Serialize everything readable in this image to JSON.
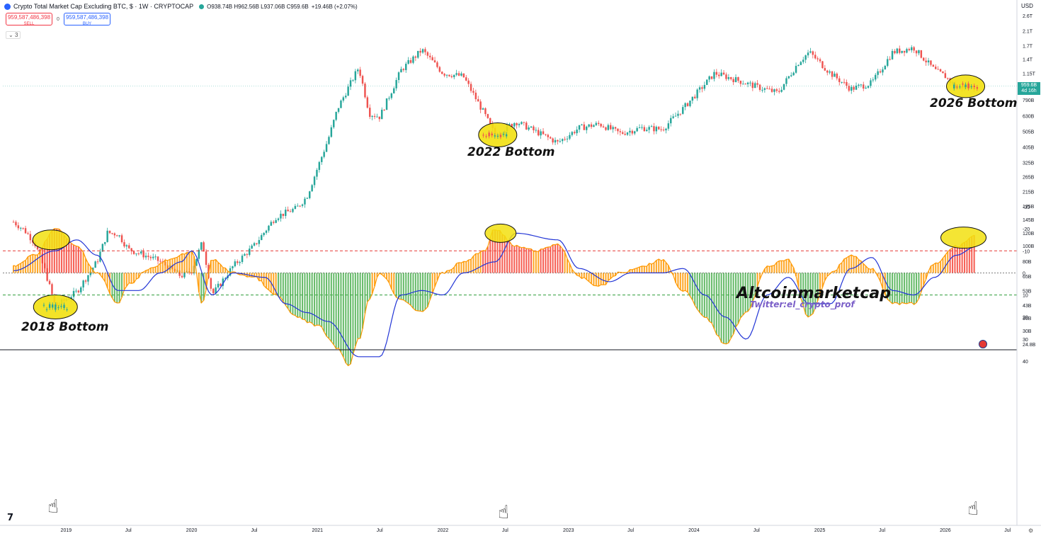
{
  "header": {
    "title": "Crypto Total Market Cap Excluding BTC, $ · 1W · CRYPTOCAP",
    "ohlc": "O938.74B H962.56B L937.06B C959.6B",
    "change": "+19.46B (+2.07%)",
    "sell_value": "959,587,486,398",
    "sell_label": "SELL",
    "buy_value": "959,587,486,398",
    "buy_label": "BUY",
    "spread": "0",
    "indicator_count": "3",
    "currency": "USD"
  },
  "price_tag": {
    "value": "959.6B",
    "countdown": "4d 16h"
  },
  "annotations": {
    "bottom_2018": "2018 Bottom",
    "bottom_2022": "2022 Bottom",
    "bottom_2026": "2026 Bottom",
    "brand": "Altcoinmarketcap",
    "handle": "Twitter:el_crypto_prof"
  },
  "colors": {
    "up": "#26a69a",
    "down": "#ef5350",
    "highlight": "#f2e011",
    "osc_green": "#4caf50",
    "osc_orange": "#ff9800",
    "osc_red": "#f44336",
    "signal": "#2235d6",
    "band_top": "#2e9d3a",
    "band_bottom": "#e53935"
  },
  "icons": [
    "tradingview-logo-icon",
    "us-flag-icon",
    "pointing-hand-icon"
  ],
  "chart_data": [
    {
      "type": "candlestick",
      "scale": "log",
      "timeframe": "1W",
      "y_ticks": [
        "2.6T",
        "2.1T",
        "1.7T",
        "1.4T",
        "1.15T",
        "959.6B",
        "790B",
        "630B",
        "505B",
        "405B",
        "325B",
        "265B",
        "215B",
        "175B",
        "145B",
        "120B",
        "100B",
        "80B",
        "65B",
        "53B",
        "43B",
        "36B",
        "30B",
        "24.8B"
      ],
      "x_ticks": [
        "2019",
        "Jul",
        "2020",
        "Jul",
        "2021",
        "Jul",
        "2022",
        "Jul",
        "2023",
        "Jul",
        "2024",
        "Jul",
        "2025",
        "Jul",
        "2026",
        "Jul"
      ],
      "anchors": [
        {
          "date": "2018-08",
          "close": 140
        },
        {
          "date": "2018-09",
          "close": 125
        },
        {
          "date": "2018-10",
          "close": 105
        },
        {
          "date": "2018-11",
          "close": 70
        },
        {
          "date": "2018-12",
          "close": 42
        },
        {
          "date": "2019-01",
          "close": 47
        },
        {
          "date": "2019-02",
          "close": 52
        },
        {
          "date": "2019-04",
          "close": 80
        },
        {
          "date": "2019-05",
          "close": 120
        },
        {
          "date": "2019-06",
          "close": 118
        },
        {
          "date": "2019-07",
          "close": 95
        },
        {
          "date": "2019-09",
          "close": 85
        },
        {
          "date": "2019-10",
          "close": 80
        },
        {
          "date": "2019-12",
          "close": 65
        },
        {
          "date": "2020-01",
          "close": 70
        },
        {
          "date": "2020-02",
          "close": 105
        },
        {
          "date": "2020-03",
          "close": 50
        },
        {
          "date": "2020-05",
          "close": 75
        },
        {
          "date": "2020-07",
          "close": 100
        },
        {
          "date": "2020-09",
          "close": 150
        },
        {
          "date": "2020-11",
          "close": 170
        },
        {
          "date": "2020-12",
          "close": 200
        },
        {
          "date": "2021-01",
          "close": 300
        },
        {
          "date": "2021-02",
          "close": 450
        },
        {
          "date": "2021-03",
          "close": 700
        },
        {
          "date": "2021-05",
          "close": 1250
        },
        {
          "date": "2021-06",
          "close": 650
        },
        {
          "date": "2021-07",
          "close": 620
        },
        {
          "date": "2021-09",
          "close": 1200
        },
        {
          "date": "2021-11",
          "close": 1600
        },
        {
          "date": "2022-01",
          "close": 1150
        },
        {
          "date": "2022-03",
          "close": 1100
        },
        {
          "date": "2022-05",
          "close": 650
        },
        {
          "date": "2022-06",
          "close": 480
        },
        {
          "date": "2022-08",
          "close": 580
        },
        {
          "date": "2022-10",
          "close": 500
        },
        {
          "date": "2022-12",
          "close": 430
        },
        {
          "date": "2023-02",
          "close": 530
        },
        {
          "date": "2023-04",
          "close": 560
        },
        {
          "date": "2023-06",
          "close": 490
        },
        {
          "date": "2023-08",
          "close": 530
        },
        {
          "date": "2023-10",
          "close": 520
        },
        {
          "date": "2023-12",
          "close": 700
        },
        {
          "date": "2024-03",
          "close": 1150
        },
        {
          "date": "2024-05",
          "close": 1050
        },
        {
          "date": "2024-07",
          "close": 950
        },
        {
          "date": "2024-09",
          "close": 870
        },
        {
          "date": "2024-11",
          "close": 1350
        },
        {
          "date": "2024-12",
          "close": 1550
        },
        {
          "date": "2025-02",
          "close": 1150
        },
        {
          "date": "2025-04",
          "close": 920
        },
        {
          "date": "2025-06",
          "close": 1000
        },
        {
          "date": "2025-08",
          "close": 1550
        },
        {
          "date": "2025-10",
          "close": 1650
        },
        {
          "date": "2025-12",
          "close": 1200
        },
        {
          "date": "2026-01",
          "close": 1100
        },
        {
          "date": "2026-02",
          "close": 940
        },
        {
          "date": "2026-04",
          "close": 959.6
        }
      ],
      "highlighted_bottoms": [
        "2018 Bottom",
        "2022 Bottom",
        "2026 Bottom"
      ]
    },
    {
      "type": "histogram",
      "name": "oscillator",
      "y_ticks": [
        "40",
        "30",
        "20",
        "10",
        "0",
        "-10",
        "-20",
        "-30"
      ],
      "ylim": [
        -30,
        40
      ],
      "levels": [
        10,
        0,
        -10
      ],
      "series": [
        {
          "name": "histogram",
          "points": [
            {
              "date": "2018-08",
              "y": -3
            },
            {
              "date": "2018-10",
              "y": -8
            },
            {
              "date": "2018-12",
              "y": -20
            },
            {
              "date": "2019-02",
              "y": -12
            },
            {
              "date": "2019-04",
              "y": 0
            },
            {
              "date": "2019-06",
              "y": 14
            },
            {
              "date": "2019-07",
              "y": 5
            },
            {
              "date": "2019-09",
              "y": -2
            },
            {
              "date": "2019-11",
              "y": -6
            },
            {
              "date": "2020-01",
              "y": -10
            },
            {
              "date": "2020-02",
              "y": 14
            },
            {
              "date": "2020-03",
              "y": -6
            },
            {
              "date": "2020-05",
              "y": 0
            },
            {
              "date": "2020-07",
              "y": 2
            },
            {
              "date": "2020-09",
              "y": 10
            },
            {
              "date": "2020-11",
              "y": 20
            },
            {
              "date": "2021-01",
              "y": 24
            },
            {
              "date": "2021-03",
              "y": 34
            },
            {
              "date": "2021-04",
              "y": 42
            },
            {
              "date": "2021-05",
              "y": 30
            },
            {
              "date": "2021-06",
              "y": 12
            },
            {
              "date": "2021-07",
              "y": 0
            },
            {
              "date": "2021-09",
              "y": 12
            },
            {
              "date": "2021-11",
              "y": 18
            },
            {
              "date": "2022-01",
              "y": 0
            },
            {
              "date": "2022-03",
              "y": -5
            },
            {
              "date": "2022-05",
              "y": -10
            },
            {
              "date": "2022-06",
              "y": -20
            },
            {
              "date": "2022-08",
              "y": -12
            },
            {
              "date": "2022-10",
              "y": -10
            },
            {
              "date": "2022-12",
              "y": -13
            },
            {
              "date": "2023-02",
              "y": 2
            },
            {
              "date": "2023-04",
              "y": 6
            },
            {
              "date": "2023-06",
              "y": 0
            },
            {
              "date": "2023-08",
              "y": -3
            },
            {
              "date": "2023-10",
              "y": -6
            },
            {
              "date": "2023-12",
              "y": 8
            },
            {
              "date": "2024-02",
              "y": 20
            },
            {
              "date": "2024-04",
              "y": 32
            },
            {
              "date": "2024-06",
              "y": 18
            },
            {
              "date": "2024-08",
              "y": -3
            },
            {
              "date": "2024-10",
              "y": -6
            },
            {
              "date": "2024-12",
              "y": 20
            },
            {
              "date": "2025-02",
              "y": 0
            },
            {
              "date": "2025-04",
              "y": -8
            },
            {
              "date": "2025-06",
              "y": -2
            },
            {
              "date": "2025-08",
              "y": 14
            },
            {
              "date": "2025-10",
              "y": 14
            },
            {
              "date": "2025-12",
              "y": -4
            },
            {
              "date": "2026-02",
              "y": -12
            },
            {
              "date": "2026-04",
              "y": -17
            }
          ]
        },
        {
          "name": "signal",
          "points": [
            {
              "date": "2018-08",
              "y": -1
            },
            {
              "date": "2018-12",
              "y": -10
            },
            {
              "date": "2019-02",
              "y": -15
            },
            {
              "date": "2019-04",
              "y": -8
            },
            {
              "date": "2019-06",
              "y": 8
            },
            {
              "date": "2019-08",
              "y": 8
            },
            {
              "date": "2019-10",
              "y": 0
            },
            {
              "date": "2019-12",
              "y": -5
            },
            {
              "date": "2020-01",
              "y": -10
            },
            {
              "date": "2020-03",
              "y": 10
            },
            {
              "date": "2020-05",
              "y": 0
            },
            {
              "date": "2020-08",
              "y": 2
            },
            {
              "date": "2020-10",
              "y": 14
            },
            {
              "date": "2020-12",
              "y": 18
            },
            {
              "date": "2021-02",
              "y": 22
            },
            {
              "date": "2021-05",
              "y": 38
            },
            {
              "date": "2021-07",
              "y": 38
            },
            {
              "date": "2021-09",
              "y": 10
            },
            {
              "date": "2021-11",
              "y": 8
            },
            {
              "date": "2022-01",
              "y": 10
            },
            {
              "date": "2022-03",
              "y": 0
            },
            {
              "date": "2022-06",
              "y": -5
            },
            {
              "date": "2022-08",
              "y": -18
            },
            {
              "date": "2022-12",
              "y": -15
            },
            {
              "date": "2023-02",
              "y": -2
            },
            {
              "date": "2023-05",
              "y": 4
            },
            {
              "date": "2023-07",
              "y": 0
            },
            {
              "date": "2023-10",
              "y": 0
            },
            {
              "date": "2023-12",
              "y": -2
            },
            {
              "date": "2024-02",
              "y": 10
            },
            {
              "date": "2024-04",
              "y": 20
            },
            {
              "date": "2024-06",
              "y": 30
            },
            {
              "date": "2024-08",
              "y": 10
            },
            {
              "date": "2024-10",
              "y": 2
            },
            {
              "date": "2024-12",
              "y": 14
            },
            {
              "date": "2025-02",
              "y": 14
            },
            {
              "date": "2025-04",
              "y": -2
            },
            {
              "date": "2025-06",
              "y": -7
            },
            {
              "date": "2025-08",
              "y": 8
            },
            {
              "date": "2025-10",
              "y": 10
            },
            {
              "date": "2025-12",
              "y": 2
            },
            {
              "date": "2026-02",
              "y": -8
            },
            {
              "date": "2026-04",
              "y": -12
            }
          ]
        }
      ]
    }
  ]
}
